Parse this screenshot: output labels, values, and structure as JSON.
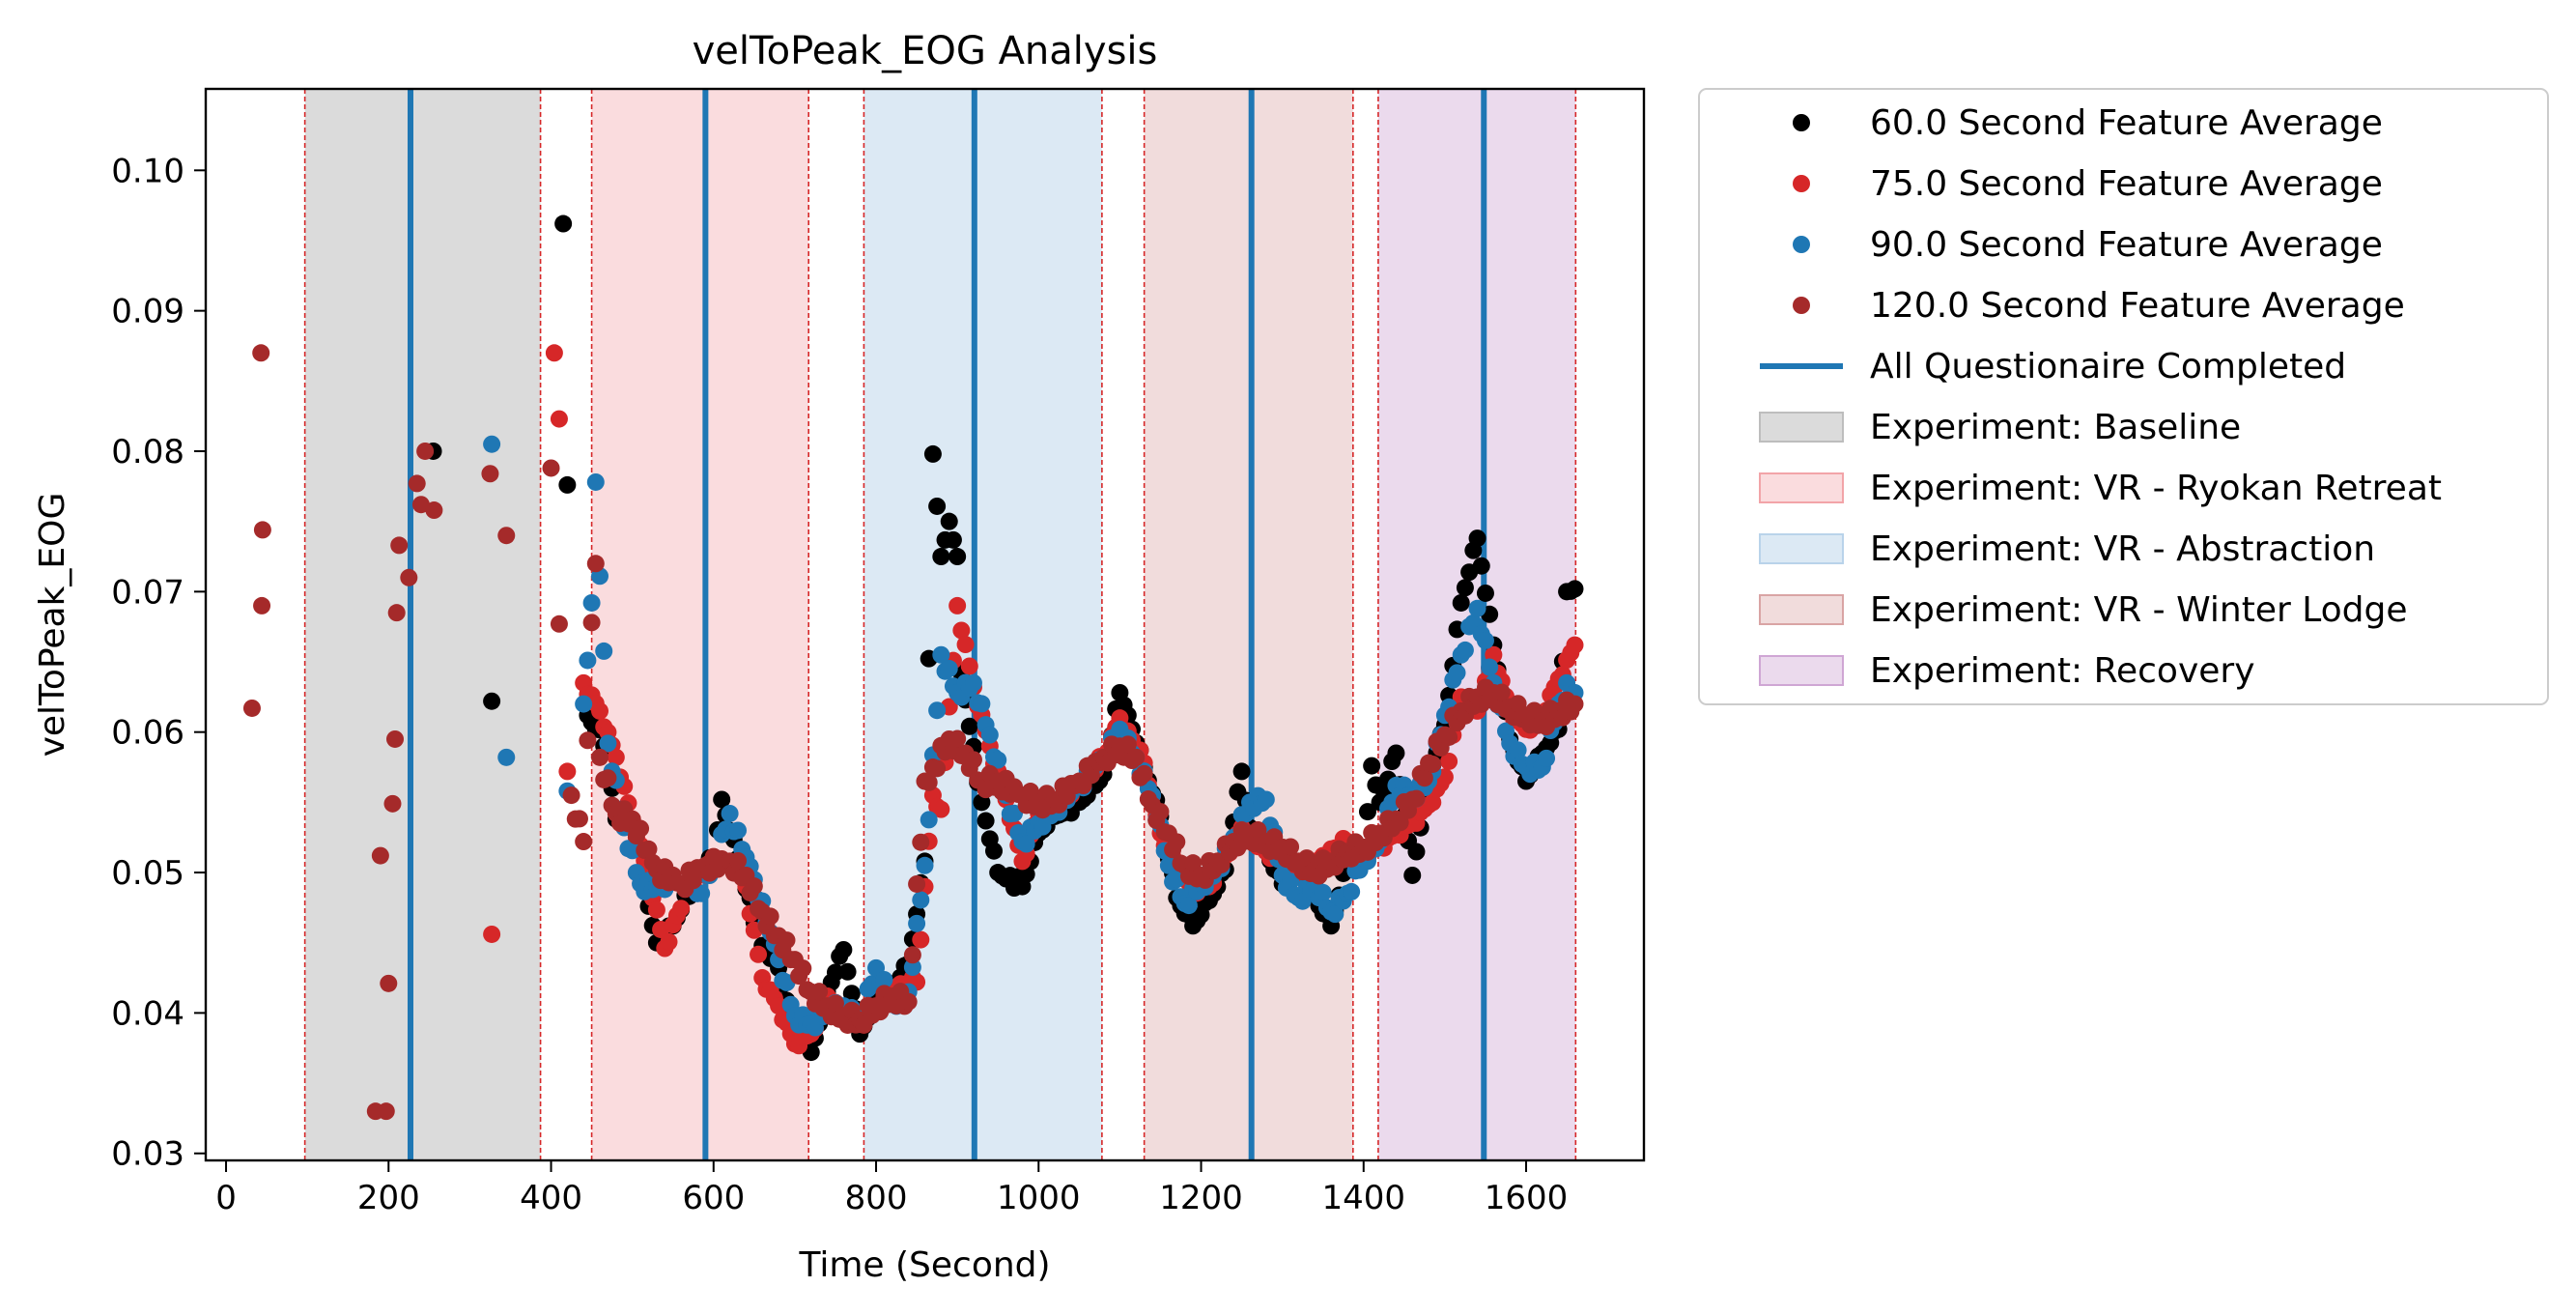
{
  "chart_data": {
    "type": "scatter",
    "title": "velToPeak_EOG Analysis",
    "xlabel": "Time (Second)",
    "ylabel": "velToPeak_EOG",
    "xlim": [
      -25,
      1745
    ],
    "ylim": [
      0.0295,
      0.1058
    ],
    "x_ticks": [
      0,
      200,
      400,
      600,
      800,
      1000,
      1200,
      1400,
      1600
    ],
    "y_ticks": [
      0.03,
      0.04,
      0.05,
      0.06,
      0.07,
      0.08,
      0.09,
      0.1
    ],
    "x_tick_labels": [
      "0",
      "200",
      "400",
      "600",
      "800",
      "1000",
      "1200",
      "1400",
      "1600"
    ],
    "y_tick_labels": [
      "0.03",
      "0.04",
      "0.05",
      "0.06",
      "0.07",
      "0.08",
      "0.09",
      "0.10"
    ],
    "grid": false,
    "legend_position": "outside-right",
    "regions": [
      {
        "label": "Experiment: Baseline",
        "start": 97,
        "end": 387,
        "color": "#bdbdbd",
        "opacity": 0.55
      },
      {
        "label": "Experiment: VR - Ryokan Retreat",
        "start": 450,
        "end": 717,
        "color": "#f2a4a8",
        "opacity": 0.38
      },
      {
        "label": "Experiment: VR - Abstraction",
        "start": 785,
        "end": 1078,
        "color": "#b9d3ea",
        "opacity": 0.5
      },
      {
        "label": "Experiment: VR - Winter Lodge",
        "start": 1130,
        "end": 1387,
        "color": "#d9a4a4",
        "opacity": 0.38
      },
      {
        "label": "Experiment: Recovery",
        "start": 1418,
        "end": 1661,
        "color": "#cfa6d4",
        "opacity": 0.42
      }
    ],
    "questionnaire_lines": {
      "label": "All Questionaire Completed",
      "color": "#1f77b4",
      "x": [
        227,
        590,
        921,
        1262,
        1548
      ]
    },
    "series": [
      {
        "name": "60.0 Second Feature Average",
        "color": "#000000",
        "anchors": [
          [
            255,
            0.08
          ],
          [
            327,
            0.0622
          ],
          [
            415,
            0.0962
          ],
          [
            420,
            0.0776
          ],
          [
            445,
            0.0612
          ],
          [
            470,
            0.059
          ],
          [
            475,
            0.056
          ],
          [
            480,
            0.0538
          ],
          [
            520,
            0.0476
          ],
          [
            530,
            0.045
          ],
          [
            550,
            0.0462
          ],
          [
            580,
            0.05
          ],
          [
            600,
            0.051
          ],
          [
            610,
            0.0552
          ],
          [
            630,
            0.051
          ],
          [
            660,
            0.0448
          ],
          [
            680,
            0.0432
          ],
          [
            700,
            0.0388
          ],
          [
            720,
            0.0372
          ],
          [
            740,
            0.0415
          ],
          [
            760,
            0.0445
          ],
          [
            780,
            0.0385
          ],
          [
            800,
            0.041
          ],
          [
            820,
            0.0418
          ],
          [
            840,
            0.0435
          ],
          [
            860,
            0.0508
          ],
          [
            870,
            0.0798
          ],
          [
            880,
            0.0725
          ],
          [
            890,
            0.075
          ],
          [
            900,
            0.0725
          ],
          [
            905,
            0.0642
          ],
          [
            930,
            0.055
          ],
          [
            950,
            0.05
          ],
          [
            980,
            0.049
          ],
          [
            1000,
            0.0528
          ],
          [
            1020,
            0.054
          ],
          [
            1050,
            0.055
          ],
          [
            1070,
            0.0562
          ],
          [
            1080,
            0.057
          ],
          [
            1100,
            0.0628
          ],
          [
            1110,
            0.0612
          ],
          [
            1130,
            0.0575
          ],
          [
            1150,
            0.054
          ],
          [
            1170,
            0.0482
          ],
          [
            1190,
            0.0462
          ],
          [
            1210,
            0.048
          ],
          [
            1230,
            0.0502
          ],
          [
            1250,
            0.0572
          ],
          [
            1260,
            0.0532
          ],
          [
            1280,
            0.0515
          ],
          [
            1300,
            0.0492
          ],
          [
            1320,
            0.0505
          ],
          [
            1340,
            0.0482
          ],
          [
            1360,
            0.0462
          ],
          [
            1380,
            0.0508
          ],
          [
            1400,
            0.0512
          ],
          [
            1410,
            0.0576
          ],
          [
            1420,
            0.055
          ],
          [
            1440,
            0.0585
          ],
          [
            1460,
            0.0498
          ],
          [
            1480,
            0.0568
          ],
          [
            1500,
            0.0605
          ],
          [
            1520,
            0.0692
          ],
          [
            1540,
            0.0738
          ],
          [
            1560,
            0.0662
          ],
          [
            1580,
            0.0595
          ],
          [
            1600,
            0.0565
          ],
          [
            1620,
            0.0585
          ],
          [
            1640,
            0.0602
          ],
          [
            1650,
            0.07
          ],
          [
            1660,
            0.0702
          ]
        ]
      },
      {
        "name": "75.0 Second Feature Average",
        "color": "#d62728",
        "anchors": [
          [
            327,
            0.0456
          ],
          [
            404,
            0.087
          ],
          [
            410,
            0.0823
          ],
          [
            420,
            0.0572
          ],
          [
            440,
            0.0635
          ],
          [
            460,
            0.0615
          ],
          [
            480,
            0.0582
          ],
          [
            500,
            0.0538
          ],
          [
            520,
            0.0498
          ],
          [
            540,
            0.0446
          ],
          [
            570,
            0.0492
          ],
          [
            600,
            0.0505
          ],
          [
            640,
            0.049
          ],
          [
            660,
            0.0425
          ],
          [
            680,
            0.0405
          ],
          [
            700,
            0.0378
          ],
          [
            720,
            0.0385
          ],
          [
            740,
            0.0412
          ],
          [
            760,
            0.04
          ],
          [
            780,
            0.0392
          ],
          [
            800,
            0.0402
          ],
          [
            820,
            0.0418
          ],
          [
            850,
            0.0422
          ],
          [
            870,
            0.0555
          ],
          [
            880,
            0.0545
          ],
          [
            890,
            0.0618
          ],
          [
            900,
            0.069
          ],
          [
            920,
            0.0632
          ],
          [
            940,
            0.059
          ],
          [
            960,
            0.0552
          ],
          [
            980,
            0.0508
          ],
          [
            1000,
            0.0542
          ],
          [
            1020,
            0.0548
          ],
          [
            1050,
            0.0562
          ],
          [
            1080,
            0.0582
          ],
          [
            1100,
            0.061
          ],
          [
            1130,
            0.0578
          ],
          [
            1150,
            0.0528
          ],
          [
            1170,
            0.0505
          ],
          [
            1190,
            0.0488
          ],
          [
            1210,
            0.049
          ],
          [
            1230,
            0.0512
          ],
          [
            1250,
            0.0532
          ],
          [
            1280,
            0.0515
          ],
          [
            1300,
            0.0508
          ],
          [
            1330,
            0.0498
          ],
          [
            1350,
            0.0512
          ],
          [
            1380,
            0.0522
          ],
          [
            1400,
            0.0512
          ],
          [
            1420,
            0.0518
          ],
          [
            1440,
            0.0528
          ],
          [
            1460,
            0.0535
          ],
          [
            1480,
            0.0548
          ],
          [
            1500,
            0.0568
          ],
          [
            1520,
            0.0625
          ],
          [
            1540,
            0.0615
          ],
          [
            1560,
            0.0655
          ],
          [
            1580,
            0.0615
          ],
          [
            1600,
            0.0602
          ],
          [
            1620,
            0.0612
          ],
          [
            1640,
            0.0638
          ],
          [
            1660,
            0.0662
          ]
        ]
      },
      {
        "name": "90.0 Second Feature Average",
        "color": "#1f77b4",
        "anchors": [
          [
            327,
            0.0805
          ],
          [
            345,
            0.0582
          ],
          [
            420,
            0.0558
          ],
          [
            440,
            0.062
          ],
          [
            450,
            0.0692
          ],
          [
            455,
            0.0778
          ],
          [
            470,
            0.0592
          ],
          [
            490,
            0.0532
          ],
          [
            510,
            0.0492
          ],
          [
            540,
            0.0488
          ],
          [
            580,
            0.0485
          ],
          [
            600,
            0.0505
          ],
          [
            620,
            0.0542
          ],
          [
            650,
            0.0495
          ],
          [
            680,
            0.0438
          ],
          [
            700,
            0.0398
          ],
          [
            720,
            0.0392
          ],
          [
            740,
            0.0402
          ],
          [
            760,
            0.0405
          ],
          [
            780,
            0.0395
          ],
          [
            800,
            0.0432
          ],
          [
            820,
            0.0408
          ],
          [
            840,
            0.0415
          ],
          [
            860,
            0.0505
          ],
          [
            880,
            0.0655
          ],
          [
            900,
            0.0628
          ],
          [
            920,
            0.0635
          ],
          [
            940,
            0.0598
          ],
          [
            960,
            0.0555
          ],
          [
            980,
            0.0522
          ],
          [
            1000,
            0.0535
          ],
          [
            1020,
            0.0545
          ],
          [
            1050,
            0.0562
          ],
          [
            1080,
            0.0582
          ],
          [
            1100,
            0.0602
          ],
          [
            1120,
            0.0582
          ],
          [
            1140,
            0.0555
          ],
          [
            1160,
            0.0505
          ],
          [
            1180,
            0.0478
          ],
          [
            1200,
            0.0492
          ],
          [
            1220,
            0.0502
          ],
          [
            1240,
            0.0525
          ],
          [
            1260,
            0.055
          ],
          [
            1280,
            0.0552
          ],
          [
            1300,
            0.0498
          ],
          [
            1320,
            0.0482
          ],
          [
            1340,
            0.0492
          ],
          [
            1360,
            0.0472
          ],
          [
            1380,
            0.0485
          ],
          [
            1400,
            0.051
          ],
          [
            1420,
            0.0522
          ],
          [
            1440,
            0.0562
          ],
          [
            1460,
            0.0555
          ],
          [
            1480,
            0.0565
          ],
          [
            1500,
            0.0612
          ],
          [
            1520,
            0.0655
          ],
          [
            1540,
            0.0688
          ],
          [
            1560,
            0.0635
          ],
          [
            1580,
            0.0592
          ],
          [
            1600,
            0.0575
          ],
          [
            1620,
            0.0575
          ],
          [
            1640,
            0.062
          ],
          [
            1650,
            0.0635
          ],
          [
            1660,
            0.0628
          ]
        ]
      },
      {
        "name": "120.0 Second Feature Average",
        "color": "#a52a2a",
        "anchors": [
          [
            32,
            0.0617
          ],
          [
            43,
            0.087
          ],
          [
            45,
            0.0744
          ],
          [
            44,
            0.069
          ],
          [
            184,
            0.033
          ],
          [
            190,
            0.0512
          ],
          [
            197,
            0.033
          ],
          [
            200,
            0.0421
          ],
          [
            205,
            0.0549
          ],
          [
            208,
            0.0595
          ],
          [
            210,
            0.0685
          ],
          [
            213,
            0.0733
          ],
          [
            225,
            0.071
          ],
          [
            235,
            0.0777
          ],
          [
            240,
            0.0762
          ],
          [
            245,
            0.08
          ],
          [
            256,
            0.0758
          ],
          [
            325,
            0.0784
          ],
          [
            345,
            0.074
          ],
          [
            400,
            0.0788
          ],
          [
            410,
            0.0677
          ],
          [
            425,
            0.0555
          ],
          [
            440,
            0.0522
          ],
          [
            450,
            0.0678
          ],
          [
            455,
            0.072
          ],
          [
            460,
            0.0582
          ],
          [
            480,
            0.0542
          ],
          [
            500,
            0.0538
          ],
          [
            530,
            0.0502
          ],
          [
            560,
            0.0492
          ],
          [
            590,
            0.0505
          ],
          [
            620,
            0.0508
          ],
          [
            640,
            0.0498
          ],
          [
            660,
            0.0472
          ],
          [
            680,
            0.0455
          ],
          [
            700,
            0.0438
          ],
          [
            720,
            0.0415
          ],
          [
            740,
            0.0405
          ],
          [
            760,
            0.0398
          ],
          [
            780,
            0.0395
          ],
          [
            800,
            0.0405
          ],
          [
            820,
            0.0412
          ],
          [
            840,
            0.0408
          ],
          [
            860,
            0.0565
          ],
          [
            870,
            0.0575
          ],
          [
            890,
            0.0595
          ],
          [
            910,
            0.0585
          ],
          [
            930,
            0.0565
          ],
          [
            950,
            0.0565
          ],
          [
            980,
            0.0555
          ],
          [
            1000,
            0.055
          ],
          [
            1020,
            0.0552
          ],
          [
            1050,
            0.0565
          ],
          [
            1080,
            0.0582
          ],
          [
            1100,
            0.059
          ],
          [
            1120,
            0.0582
          ],
          [
            1140,
            0.0548
          ],
          [
            1160,
            0.0528
          ],
          [
            1180,
            0.0505
          ],
          [
            1200,
            0.0498
          ],
          [
            1220,
            0.0508
          ],
          [
            1240,
            0.0522
          ],
          [
            1260,
            0.0528
          ],
          [
            1280,
            0.0522
          ],
          [
            1300,
            0.0518
          ],
          [
            1320,
            0.0508
          ],
          [
            1340,
            0.0502
          ],
          [
            1360,
            0.0508
          ],
          [
            1380,
            0.0515
          ],
          [
            1400,
            0.0518
          ],
          [
            1420,
            0.0528
          ],
          [
            1440,
            0.0538
          ],
          [
            1460,
            0.0552
          ],
          [
            1480,
            0.0578
          ],
          [
            1500,
            0.0598
          ],
          [
            1520,
            0.0615
          ],
          [
            1540,
            0.0625
          ],
          [
            1560,
            0.0628
          ],
          [
            1580,
            0.0618
          ],
          [
            1600,
            0.0612
          ],
          [
            1620,
            0.0608
          ],
          [
            1640,
            0.0615
          ],
          [
            1660,
            0.062
          ]
        ]
      }
    ]
  }
}
